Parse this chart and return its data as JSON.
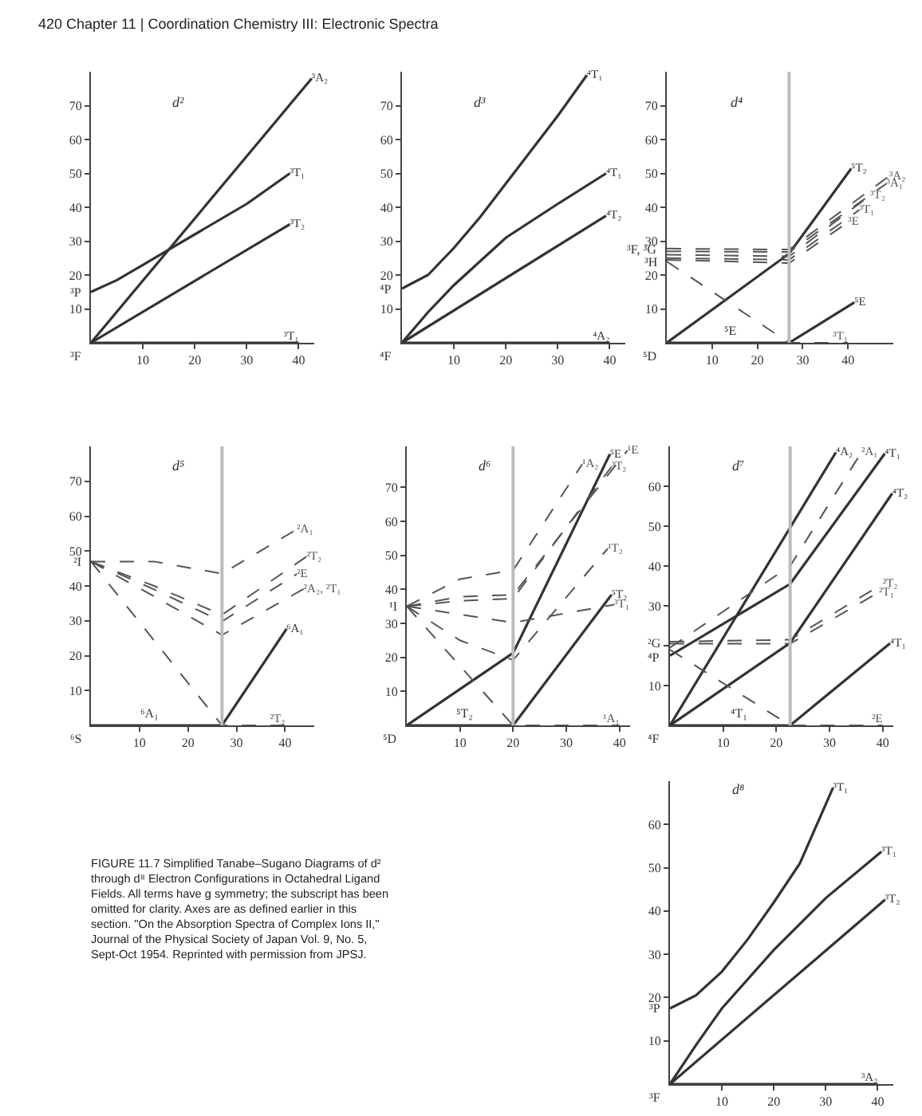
{
  "chart_data": [
    {
      "type": "other",
      "title": "420 Chapter 11 | Coordination Chemistry III: Electronic Spectra"
    },
    {
      "type": "line",
      "title": "d²",
      "xlim": [
        0,
        43
      ],
      "ylim": [
        0,
        80
      ],
      "xticks": [
        10,
        20,
        30,
        40
      ],
      "yticks": [
        10,
        20,
        30,
        40,
        50,
        60,
        70
      ],
      "marker": "none",
      "annotations": [
        {
          "text": "³F",
          "x": 0,
          "y": 0
        },
        {
          "text": "³P",
          "x": 0,
          "y": 15
        }
      ],
      "series": [
        {
          "name": "³A₂",
          "color": "#333333",
          "line_style": "solid",
          "x": [
            0,
            42.5
          ],
          "values": [
            0,
            78
          ]
        },
        {
          "name": "³T₁",
          "color": "#333333",
          "line_style": "solid",
          "x": [
            0,
            5,
            10,
            15,
            20,
            30,
            38.3
          ],
          "values": [
            15,
            18.5,
            23,
            27.5,
            32,
            41,
            50
          ]
        },
        {
          "name": "³T₂",
          "color": "#333333",
          "line_style": "solid",
          "x": [
            0,
            38.3
          ],
          "values": [
            0,
            35
          ]
        },
        {
          "name": "³T₁",
          "color": "#333333",
          "line_style": "solid",
          "x": [
            0,
            40
          ],
          "values": [
            0,
            0
          ]
        }
      ]
    },
    {
      "type": "line",
      "title": "d³",
      "xlim": [
        0,
        43
      ],
      "ylim": [
        0,
        80
      ],
      "xticks": [
        10,
        20,
        30,
        40
      ],
      "yticks": [
        10,
        20,
        30,
        40,
        50,
        60,
        70
      ],
      "marker": "none",
      "annotations": [
        {
          "text": "⁴F",
          "x": 0,
          "y": 0
        },
        {
          "text": "⁴P",
          "x": 0,
          "y": 16
        }
      ],
      "series": [
        {
          "name": "⁴T₁",
          "color": "#333333",
          "line_style": "solid",
          "x": [
            0,
            5,
            10,
            15,
            20,
            25,
            30,
            35.6
          ],
          "values": [
            16,
            20,
            28,
            37,
            47,
            57,
            67,
            79
          ]
        },
        {
          "name": "⁴T₁",
          "color": "#333333",
          "line_style": "solid",
          "x": [
            0,
            5,
            10,
            20,
            30,
            39.3
          ],
          "values": [
            0,
            9,
            17,
            31,
            41,
            50
          ]
        },
        {
          "name": "⁴T₂",
          "color": "#333333",
          "line_style": "solid",
          "x": [
            0,
            39.3
          ],
          "values": [
            0,
            37.5
          ]
        },
        {
          "name": "⁴A₂",
          "color": "#333333",
          "line_style": "solid",
          "x": [
            0,
            40
          ],
          "values": [
            0,
            0
          ]
        }
      ]
    },
    {
      "type": "line",
      "title": "d⁴",
      "xlim": [
        0,
        50
      ],
      "ylim": [
        0,
        80
      ],
      "xticks": [
        10,
        20,
        30,
        40
      ],
      "yticks": [
        10,
        20,
        30,
        40,
        50,
        60,
        70
      ],
      "marker": "none",
      "ref_lines": [
        {
          "axis": "x",
          "value": 27,
          "color": "#bbbbbb"
        }
      ],
      "annotations": [
        {
          "text": "⁵D",
          "x": 0,
          "y": 0
        },
        {
          "text": "³F, ³G",
          "x": 0,
          "y": 27.5
        },
        {
          "text": "³H",
          "x": 0,
          "y": 24
        },
        {
          "text": "⁵E",
          "x": 14,
          "y": 0
        }
      ],
      "series": [
        {
          "name": "⁵T₂",
          "color": "#333333",
          "line_style": "solid",
          "x": [
            0,
            27,
            40.7
          ],
          "values": [
            0,
            26.3,
            51.4
          ]
        },
        {
          "name": "³A₂",
          "color": "#555555",
          "line_style": "dashed",
          "x": [
            0,
            27,
            49.1
          ],
          "values": [
            27.8,
            27.5,
            49.2
          ]
        },
        {
          "name": "³A₁",
          "color": "#555555",
          "line_style": "dashed",
          "x": [
            0,
            27,
            48.5
          ],
          "values": [
            27,
            26.8,
            47
          ]
        },
        {
          "name": "³T₂",
          "color": "#555555",
          "line_style": "dashed",
          "x": [
            0,
            27,
            44.9
          ],
          "values": [
            26,
            25.5,
            43.5
          ]
        },
        {
          "name": "³T₁",
          "color": "#555555",
          "line_style": "dashed",
          "x": [
            0,
            27,
            42.5
          ],
          "values": [
            25,
            24.5,
            39.2
          ]
        },
        {
          "name": "³E",
          "color": "#555555",
          "line_style": "dashed",
          "x": [
            0,
            27,
            40
          ],
          "values": [
            24.5,
            23.5,
            35.6
          ]
        },
        {
          "name": "⁵E",
          "color": "#333333",
          "line_style": "solid",
          "x": [
            0,
            27,
            41.4
          ],
          "values": [
            0,
            0,
            11.9
          ]
        },
        {
          "name": "³T₁",
          "color": "#555555",
          "line_style": "dashed",
          "x": [
            0,
            27,
            40
          ],
          "values": [
            24,
            0,
            0
          ]
        }
      ]
    },
    {
      "type": "line",
      "title": "d⁵",
      "xlim": [
        0,
        46
      ],
      "ylim": [
        0,
        80
      ],
      "xticks": [
        10,
        20,
        30,
        40
      ],
      "yticks": [
        10,
        20,
        30,
        40,
        50,
        60,
        70
      ],
      "marker": "none",
      "ref_lines": [
        {
          "axis": "x",
          "value": 27,
          "color": "#bbbbbb"
        }
      ],
      "annotations": [
        {
          "text": "⁶S",
          "x": 0,
          "y": 0
        },
        {
          "text": "²I",
          "x": 0,
          "y": 47
        },
        {
          "text": "⁶A₁",
          "x": 12,
          "y": 0
        }
      ],
      "series": [
        {
          "name": "²A₁",
          "color": "#555555",
          "line_style": "dashed",
          "x": [
            0,
            13,
            27,
            42.4
          ],
          "values": [
            47,
            47,
            43.5,
            56.2
          ]
        },
        {
          "name": "²T₂",
          "color": "#555555",
          "line_style": "dashed",
          "x": [
            0,
            13,
            27,
            44.4
          ],
          "values": [
            47,
            40,
            31.7,
            48.4
          ]
        },
        {
          "name": "²E",
          "color": "#555555",
          "line_style": "dashed",
          "x": [
            0,
            13,
            27,
            42.4
          ],
          "values": [
            47,
            39,
            29.8,
            43.4
          ]
        },
        {
          "name": "²A₂, ²T₁",
          "color": "#555555",
          "line_style": "dashed",
          "x": [
            0,
            13,
            27,
            43.8
          ],
          "values": [
            47,
            37,
            25.9,
            39.1
          ]
        },
        {
          "name": "⁶A₁",
          "color": "#333333",
          "line_style": "solid",
          "x": [
            0,
            27,
            40.3
          ],
          "values": [
            0,
            0,
            27.7
          ]
        },
        {
          "name": "²T₂",
          "color": "#555555",
          "line_style": "dashed",
          "x": [
            0,
            27,
            40
          ],
          "values": [
            47,
            0,
            0
          ]
        }
      ]
    },
    {
      "type": "line",
      "title": "d⁶",
      "xlim": [
        0,
        42
      ],
      "ylim": [
        0,
        82
      ],
      "xticks": [
        10,
        20,
        30,
        40
      ],
      "yticks": [
        10,
        20,
        30,
        40,
        50,
        60,
        70
      ],
      "marker": "none",
      "ref_lines": [
        {
          "axis": "x",
          "value": 20,
          "color": "#bbbbbb"
        }
      ],
      "annotations": [
        {
          "text": "⁵D",
          "x": 0,
          "y": 0
        },
        {
          "text": "¹I",
          "x": 0,
          "y": 35
        },
        {
          "text": "⁵T₂",
          "x": 11,
          "y": 0
        }
      ],
      "series": [
        {
          "name": "¹A₂",
          "color": "#555555",
          "line_style": "dashed",
          "x": [
            0,
            10,
            20,
            33
          ],
          "values": [
            35,
            43,
            45.6,
            76.8
          ]
        },
        {
          "name": "⁵E",
          "color": "#333333",
          "line_style": "solid",
          "x": [
            0,
            20,
            38.2
          ],
          "values": [
            0,
            21.3,
            79.7
          ]
        },
        {
          "name": "¹E",
          "color": "#555555",
          "line_style": "dashed",
          "x": [
            0,
            10,
            20,
            41.5
          ],
          "values": [
            35,
            37.8,
            38.4,
            80.8
          ]
        },
        {
          "name": "³T₂",
          "color": "#555555",
          "line_style": "dashed",
          "x": [
            0,
            10,
            20,
            38.5
          ],
          "values": [
            35,
            36.6,
            37.3,
            76
          ]
        },
        {
          "name": "¹T₂",
          "color": "#555555",
          "line_style": "dashed",
          "x": [
            0,
            10,
            20,
            37.8
          ],
          "values": [
            35,
            25,
            19.2,
            52
          ]
        },
        {
          "name": "⁵T₂",
          "color": "#333333",
          "line_style": "solid",
          "x": [
            0,
            20,
            38.5
          ],
          "values": [
            0,
            0,
            38.4
          ]
        },
        {
          "name": "³T₁",
          "color": "#555555",
          "line_style": "dashed",
          "x": [
            0,
            20,
            39
          ],
          "values": [
            35,
            30.2,
            35.5
          ]
        },
        {
          "name": "¹A₁",
          "color": "#555555",
          "line_style": "dashed",
          "x": [
            0,
            20,
            40
          ],
          "values": [
            35,
            0,
            0
          ]
        }
      ]
    },
    {
      "type": "line",
      "title": "d⁷",
      "xlim": [
        0,
        42
      ],
      "ylim": [
        0,
        70
      ],
      "xticks": [
        10,
        20,
        30,
        40
      ],
      "yticks": [
        10,
        {
          "value": 20,
          "label": null
        },
        30,
        40,
        50,
        60
      ],
      "marker": "none",
      "ref_lines": [
        {
          "axis": "x",
          "value": 22.6,
          "color": "#bbbbbb"
        }
      ],
      "annotations": [
        {
          "text": "⁴F",
          "x": 0,
          "y": 0
        },
        {
          "text": "²G",
          "x": 0,
          "y": 20.5
        },
        {
          "text": "⁴P",
          "x": 0,
          "y": 17
        },
        {
          "text": "⁴T₁",
          "x": 13,
          "y": 0
        }
      ],
      "series": [
        {
          "name": "⁴A₂",
          "color": "#333333",
          "line_style": "solid",
          "x": [
            0,
            31.2
          ],
          "values": [
            0,
            68.5
          ]
        },
        {
          "name": "²A₁",
          "color": "#555555",
          "line_style": "dashed",
          "x": [
            0,
            22.6,
            36
          ],
          "values": [
            19.5,
            40,
            68.5
          ]
        },
        {
          "name": "⁴T₁",
          "color": "#333333",
          "line_style": "solid",
          "x": [
            0,
            22.6,
            40.4
          ],
          "values": [
            17.5,
            35.5,
            68.2
          ]
        },
        {
          "name": "⁴T₂",
          "color": "#333333",
          "line_style": "solid",
          "x": [
            0,
            22.6,
            41.8
          ],
          "values": [
            0,
            20.7,
            58.2
          ]
        },
        {
          "name": "²T₂",
          "color": "#555555",
          "line_style": "dashed",
          "x": [
            0,
            22.6,
            40
          ],
          "values": [
            21,
            21.5,
            35.5
          ]
        },
        {
          "name": "²T₁",
          "color": "#555555",
          "line_style": "dashed",
          "x": [
            0,
            22.6,
            39.3
          ],
          "values": [
            20.5,
            20.5,
            33.4
          ]
        },
        {
          "name": "⁴T₁",
          "color": "#333333",
          "line_style": "solid",
          "x": [
            0,
            22.6,
            41.4
          ],
          "values": [
            0,
            0,
            20.6
          ]
        },
        {
          "name": "²E",
          "color": "#555555",
          "line_style": "dashed",
          "x": [
            0,
            22.6,
            40
          ],
          "values": [
            19,
            0,
            0
          ]
        }
      ]
    },
    {
      "type": "other",
      "annotations": [
        "FIGURE 11.7 Simplified Tanabe–Sugano Diagrams of d² through d⁸ Electron Configurations in Octahedral Ligand Fields. All terms have g symmetry; the subscript has been omitted for clarity. Axes are as defined earlier in this section. \"On the Absorption Spectra of Complex Ions II,\" Journal of the Physical Society of Japan Vol. 9, No. 5, Sept-Oct 1954. Reprinted with permission from JPSJ."
      ]
    },
    {
      "type": "line",
      "title": "d⁸",
      "xlim": [
        0,
        43
      ],
      "ylim": [
        0,
        70
      ],
      "xticks": [
        10,
        20,
        30,
        40
      ],
      "yticks": [
        10,
        20,
        30,
        40,
        50,
        60
      ],
      "marker": "none",
      "annotations": [
        {
          "text": "³F",
          "x": 0,
          "y": 0
        },
        {
          "text": "³P",
          "x": 0,
          "y": 17.5
        }
      ],
      "series": [
        {
          "name": "³T₁",
          "color": "#333333",
          "line_style": "solid",
          "x": [
            0,
            5,
            10,
            15,
            20,
            25,
            31.4
          ],
          "values": [
            17.5,
            20.5,
            26,
            33.5,
            42,
            51,
            68.5
          ]
        },
        {
          "name": "³T₁",
          "color": "#333333",
          "line_style": "solid",
          "x": [
            0,
            5,
            10,
            20,
            30,
            40.7
          ],
          "values": [
            0,
            9,
            17.5,
            31,
            43,
            53.7
          ]
        },
        {
          "name": "³T₂",
          "color": "#333333",
          "line_style": "solid",
          "x": [
            0,
            41.4
          ],
          "values": [
            0,
            42.6
          ]
        },
        {
          "name": "³A₂",
          "color": "#333333",
          "line_style": "solid",
          "x": [
            0,
            40
          ],
          "values": [
            0,
            0
          ]
        }
      ]
    }
  ]
}
